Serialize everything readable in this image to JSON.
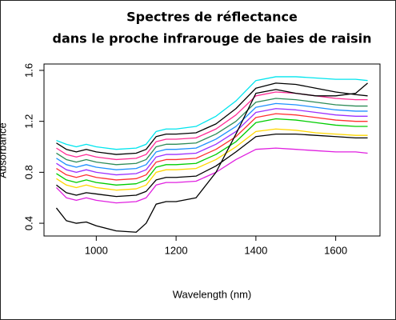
{
  "chart_data": {
    "type": "line",
    "title": [
      "Spectres de réflectance",
      "dans le proche infrarouge de baies de raisin"
    ],
    "xlabel": "Wavelength (nm)",
    "ylabel": "Absorbance",
    "x": [
      900,
      925,
      950,
      975,
      1000,
      1050,
      1100,
      1125,
      1150,
      1175,
      1200,
      1250,
      1300,
      1350,
      1400,
      1450,
      1500,
      1550,
      1600,
      1650,
      1680
    ],
    "xlim": [
      869,
      1711
    ],
    "xticks": [
      1000,
      1200,
      1400,
      1600
    ],
    "ylim": [
      0.3,
      1.65
    ],
    "yticks": [
      0.4,
      0.8,
      1.2,
      1.6
    ],
    "series": [
      {
        "color": "#00e5ee",
        "values": [
          1.05,
          1.02,
          1.0,
          1.02,
          1.0,
          0.98,
          0.99,
          1.02,
          1.12,
          1.14,
          1.14,
          1.16,
          1.24,
          1.36,
          1.52,
          1.55,
          1.55,
          1.54,
          1.53,
          1.53,
          1.52
        ]
      },
      {
        "color": "#000000",
        "values": [
          1.03,
          0.98,
          0.96,
          0.98,
          0.96,
          0.94,
          0.95,
          0.98,
          1.08,
          1.1,
          1.1,
          1.11,
          1.18,
          1.3,
          1.46,
          1.5,
          1.49,
          1.46,
          1.43,
          1.41,
          1.4
        ]
      },
      {
        "color": "#ff2d96",
        "values": [
          0.99,
          0.94,
          0.92,
          0.94,
          0.92,
          0.9,
          0.91,
          0.94,
          1.04,
          1.06,
          1.06,
          1.07,
          1.14,
          1.25,
          1.4,
          1.43,
          1.42,
          1.4,
          1.38,
          1.37,
          1.37
        ]
      },
      {
        "color": "#2e8b57",
        "values": [
          0.95,
          0.9,
          0.88,
          0.9,
          0.88,
          0.86,
          0.87,
          0.9,
          1.0,
          1.02,
          1.02,
          1.03,
          1.1,
          1.2,
          1.35,
          1.38,
          1.37,
          1.35,
          1.33,
          1.32,
          1.32
        ]
      },
      {
        "color": "#1e90ff",
        "values": [
          0.91,
          0.86,
          0.84,
          0.86,
          0.84,
          0.82,
          0.83,
          0.86,
          0.96,
          0.98,
          0.98,
          0.99,
          1.06,
          1.16,
          1.31,
          1.34,
          1.33,
          1.31,
          1.29,
          1.28,
          1.28
        ]
      },
      {
        "color": "#9b30ff",
        "values": [
          0.87,
          0.82,
          0.8,
          0.82,
          0.8,
          0.78,
          0.79,
          0.82,
          0.92,
          0.94,
          0.94,
          0.95,
          1.02,
          1.12,
          1.27,
          1.3,
          1.29,
          1.27,
          1.25,
          1.24,
          1.24
        ]
      },
      {
        "color": "#ff3030",
        "values": [
          0.83,
          0.78,
          0.76,
          0.78,
          0.76,
          0.74,
          0.75,
          0.78,
          0.88,
          0.9,
          0.9,
          0.91,
          0.98,
          1.08,
          1.23,
          1.26,
          1.25,
          1.23,
          1.21,
          1.2,
          1.2
        ]
      },
      {
        "color": "#00cd00",
        "values": [
          0.79,
          0.74,
          0.72,
          0.74,
          0.72,
          0.7,
          0.71,
          0.74,
          0.84,
          0.86,
          0.86,
          0.87,
          0.94,
          1.04,
          1.19,
          1.22,
          1.21,
          1.19,
          1.17,
          1.16,
          1.16
        ]
      },
      {
        "color": "#ffd700",
        "values": [
          0.75,
          0.7,
          0.68,
          0.7,
          0.68,
          0.66,
          0.67,
          0.7,
          0.8,
          0.82,
          0.82,
          0.83,
          0.9,
          1.0,
          1.12,
          1.14,
          1.13,
          1.11,
          1.1,
          1.09,
          1.09
        ]
      },
      {
        "color": "#000000",
        "values": [
          0.7,
          0.64,
          0.62,
          0.64,
          0.63,
          0.61,
          0.62,
          0.65,
          0.74,
          0.76,
          0.76,
          0.77,
          0.85,
          0.96,
          1.08,
          1.1,
          1.1,
          1.09,
          1.08,
          1.07,
          1.07
        ]
      },
      {
        "color": "#e020e0",
        "values": [
          0.68,
          0.6,
          0.58,
          0.6,
          0.58,
          0.56,
          0.57,
          0.6,
          0.7,
          0.72,
          0.72,
          0.73,
          0.8,
          0.9,
          0.98,
          0.99,
          0.98,
          0.97,
          0.96,
          0.96,
          0.95
        ]
      },
      {
        "color": "#000000",
        "values": [
          0.52,
          0.42,
          0.4,
          0.41,
          0.38,
          0.34,
          0.33,
          0.4,
          0.55,
          0.57,
          0.57,
          0.6,
          0.8,
          1.1,
          1.42,
          1.45,
          1.42,
          1.4,
          1.4,
          1.42,
          1.5
        ]
      }
    ]
  }
}
